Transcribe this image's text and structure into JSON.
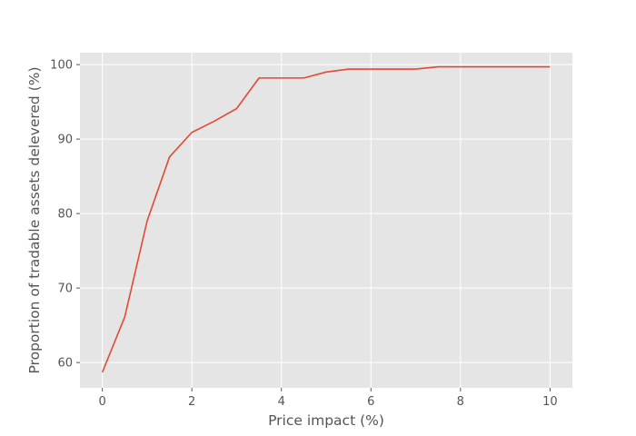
{
  "chart_data": {
    "type": "line",
    "title": "",
    "xlabel": "Price impact (%)",
    "ylabel": "Proportion of tradable assets delevered (%)",
    "xlim": [
      -0.5,
      10.5
    ],
    "ylim": [
      56.6,
      101.6
    ],
    "xticks": [
      0,
      2,
      4,
      6,
      8,
      10
    ],
    "xtick_labels": [
      "0",
      "2",
      "4",
      "6",
      "8",
      "10"
    ],
    "yticks": [
      60,
      70,
      80,
      90,
      100
    ],
    "ytick_labels": [
      "60",
      "70",
      "80",
      "90",
      "100"
    ],
    "grid": true,
    "style": "ggplot",
    "background_color": "#e5e5e5",
    "grid_color": "#ffffff",
    "tick_color": "#555555",
    "series": [
      {
        "color": "#e24a33",
        "x": [
          0,
          0.5,
          1,
          1.5,
          2,
          2.5,
          3,
          3.5,
          4,
          4.5,
          5,
          5.5,
          6,
          6.5,
          7,
          7.5,
          8,
          8.5,
          9,
          9.5,
          10
        ],
        "y": [
          58.7,
          66.1,
          79.0,
          87.6,
          90.9,
          92.4,
          94.1,
          98.2,
          98.2,
          98.2,
          99.0,
          99.4,
          99.4,
          99.4,
          99.4,
          99.7,
          99.7,
          99.7,
          99.7,
          99.7,
          99.7
        ]
      }
    ]
  }
}
